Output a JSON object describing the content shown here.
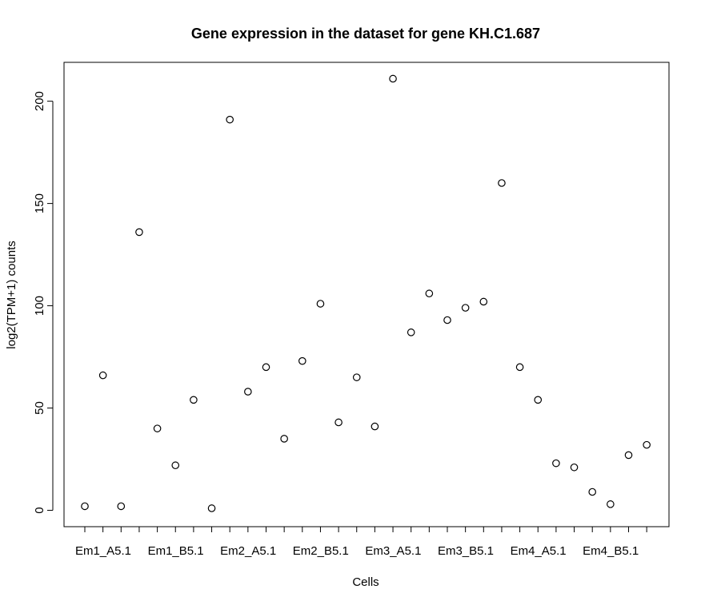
{
  "chart_data": {
    "type": "scatter",
    "title": "Gene expression in the dataset for gene KH.C1.687",
    "xlabel": "Cells",
    "ylabel": "log2(TPM+1) counts",
    "ylim": [
      -8,
      219
    ],
    "y_ticks": [
      0,
      50,
      100,
      150,
      200
    ],
    "x_tick_labels": [
      "Em1_A5.1",
      "Em1_B5.1",
      "Em2_A5.1",
      "Em2_B5.1",
      "Em3_A5.1",
      "Em3_B5.1",
      "Em4_A5.1",
      "Em4_B5.1"
    ],
    "x": [
      1,
      2,
      3,
      4,
      5,
      6,
      7,
      8,
      9,
      10,
      11,
      12,
      13,
      14,
      15,
      16,
      17,
      18,
      19,
      20,
      21,
      22,
      23,
      24,
      25,
      26,
      27,
      28,
      29,
      30,
      31,
      32
    ],
    "values": [
      2,
      66,
      2,
      136,
      40,
      22,
      54,
      1,
      191,
      58,
      70,
      35,
      73,
      101,
      43,
      65,
      41,
      211,
      87,
      106,
      93,
      99,
      102,
      160,
      70,
      54,
      23,
      21,
      9,
      3,
      27,
      32
    ],
    "grid": false,
    "legend": "none"
  }
}
